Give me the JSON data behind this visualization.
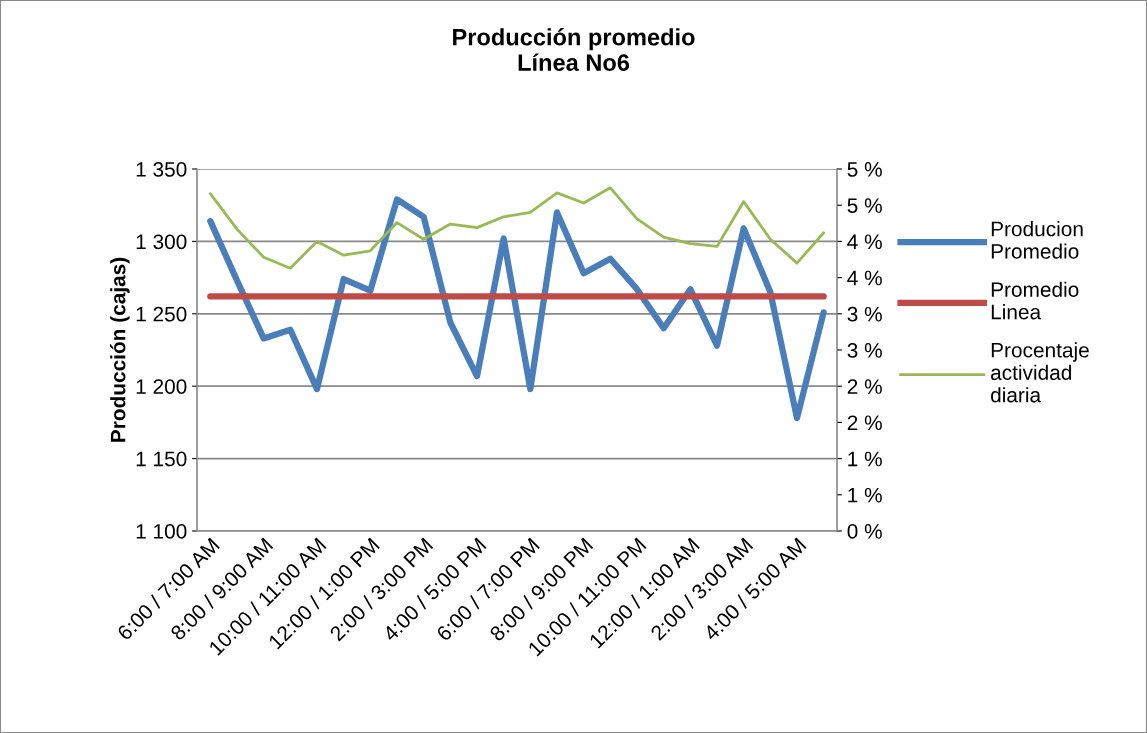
{
  "chart_data": {
    "type": "line",
    "title": "Producción promedio\nLínea No6",
    "ylabel": "Producción (cajas)",
    "categories": [
      "6:00 / 7:00 AM",
      null,
      "8:00 / 9:00 AM",
      null,
      "10:00 / 11:00 AM",
      null,
      "12:00 / 1:00 PM",
      null,
      "2:00 / 3:00 PM",
      null,
      "4:00 / 5:00 PM",
      null,
      "6:00 / 7:00 PM",
      null,
      "8:00 / 9:00 PM",
      null,
      "10:00 / 11:00 PM",
      null,
      "12:00 / 1:00 AM",
      null,
      "2:00 / 3:00 AM",
      null,
      "4:00 / 5:00 AM",
      null
    ],
    "series": [
      {
        "name": "Producion Promedio",
        "color": "#4a7ebb",
        "values": [
          1314,
          1273,
          1233,
          1239,
          1198,
          1274,
          1266,
          1329,
          1317,
          1244,
          1207,
          1302,
          1198,
          1320,
          1278,
          1288,
          1267,
          1240,
          1267,
          1228,
          1309,
          1265,
          1178,
          1251
        ]
      },
      {
        "name": "Promedio Linea",
        "color": "#be4b48",
        "values": [
          1262,
          1262,
          1262,
          1262,
          1262,
          1262,
          1262,
          1262,
          1262,
          1262,
          1262,
          1262,
          1262,
          1262,
          1262,
          1262,
          1262,
          1262,
          1262,
          1262,
          1262,
          1262,
          1262,
          1262
        ]
      },
      {
        "name": "Procentaje actividad diaria",
        "color": "#98b954",
        "axis": "y2",
        "values": [
          4.66,
          4.17,
          3.78,
          3.63,
          4.0,
          3.81,
          3.87,
          4.26,
          4.03,
          4.24,
          4.19,
          4.34,
          4.4,
          4.67,
          4.53,
          4.74,
          4.31,
          4.06,
          3.97,
          3.93,
          4.55,
          4.03,
          3.7,
          4.12
        ]
      }
    ],
    "ylim": [
      1100,
      1350
    ],
    "yticks": [
      {
        "value": 1100,
        "label": "1 100"
      },
      {
        "value": 1150,
        "label": "1 150"
      },
      {
        "value": 1200,
        "label": "1 200"
      },
      {
        "value": 1250,
        "label": "1 250"
      },
      {
        "value": 1300,
        "label": "1 300"
      },
      {
        "value": 1350,
        "label": "1 350"
      }
    ],
    "y2lim": [
      0,
      5
    ],
    "y2ticks": [
      {
        "value": 0,
        "label": "0 %"
      },
      {
        "value": 0.5,
        "label": "1 %"
      },
      {
        "value": 1,
        "label": "1 %"
      },
      {
        "value": 1.5,
        "label": "2 %"
      },
      {
        "value": 2,
        "label": "2 %"
      },
      {
        "value": 2.5,
        "label": "3 %"
      },
      {
        "value": 3,
        "label": "3 %"
      },
      {
        "value": 3.5,
        "label": "4 %"
      },
      {
        "value": 4,
        "label": "4 %"
      },
      {
        "value": 4.5,
        "label": "5 %"
      },
      {
        "value": 5,
        "label": "5 %"
      }
    ],
    "grid": "y",
    "legend": "right",
    "marker": "none",
    "line_style": "solid"
  }
}
